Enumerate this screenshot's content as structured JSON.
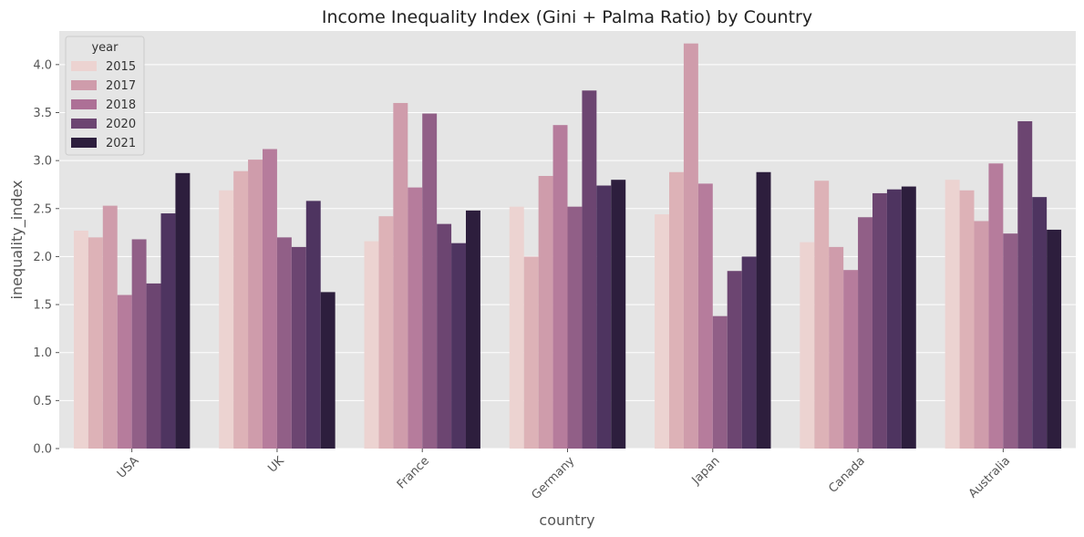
{
  "chart_data": {
    "type": "bar",
    "title": "Income Inequality Index (Gini + Palma Ratio) by Country",
    "xlabel": "country",
    "ylabel": "inequality_index",
    "ylim": [
      0,
      4.35
    ],
    "yticks": [
      0.0,
      0.5,
      1.0,
      1.5,
      2.0,
      2.5,
      3.0,
      3.5,
      4.0
    ],
    "ytick_labels": [
      "0.0",
      "0.5",
      "1.0",
      "1.5",
      "2.0",
      "2.5",
      "3.0",
      "3.5",
      "4.0"
    ],
    "categories": [
      "USA",
      "UK",
      "France",
      "Germany",
      "Japan",
      "Canada",
      "Australia"
    ],
    "grid": true,
    "legend": {
      "title": "year",
      "placement": "top-left",
      "entries": [
        "2015",
        "2017",
        "2018",
        "2020",
        "2021"
      ],
      "colors": [
        "#ecd3d1",
        "#cf9cab",
        "#ad7096",
        "#6c4571",
        "#2d1e3d"
      ]
    },
    "bars_per_group": 8,
    "bar_colors": [
      "#ecd3d1",
      "#ddb2b7",
      "#cf9cab",
      "#b67c9c",
      "#915f87",
      "#6c4571",
      "#4e3460",
      "#2d1e3d"
    ],
    "values": [
      [
        2.27,
        2.2,
        2.53,
        1.6,
        2.18,
        1.72,
        2.45,
        2.87
      ],
      [
        2.69,
        2.89,
        3.01,
        3.12,
        2.2,
        2.1,
        2.58,
        1.63
      ],
      [
        2.16,
        2.42,
        3.6,
        2.72,
        3.49,
        2.34,
        2.14,
        2.48
      ],
      [
        2.52,
        2.0,
        2.84,
        3.37,
        2.52,
        3.73,
        2.74,
        2.8
      ],
      [
        2.44,
        2.88,
        4.22,
        2.76,
        1.38,
        1.85,
        2.0,
        2.88
      ],
      [
        2.15,
        2.79,
        2.1,
        1.86,
        2.41,
        2.66,
        2.7,
        2.73
      ],
      [
        2.8,
        2.69,
        2.37,
        2.97,
        2.24,
        3.41,
        2.62,
        2.28
      ]
    ]
  }
}
